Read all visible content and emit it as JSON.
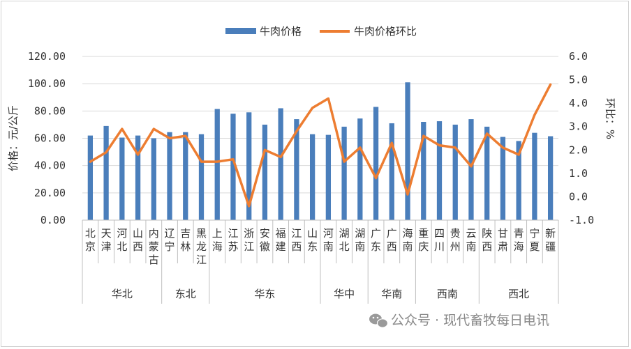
{
  "chart_data": {
    "type": "bar",
    "categories": [
      "北京",
      "天津",
      "河北",
      "山西",
      "内蒙古",
      "辽宁",
      "吉林",
      "黑龙江",
      "上海",
      "江苏",
      "浙江",
      "安徽",
      "福建",
      "江西",
      "山东",
      "河南",
      "湖北",
      "湖南",
      "广东",
      "广西",
      "海南",
      "重庆",
      "四川",
      "贵州",
      "云南",
      "陕西",
      "甘肃",
      "青海",
      "宁夏",
      "新疆"
    ],
    "regions": [
      {
        "name": "华北",
        "span": 5
      },
      {
        "name": "东北",
        "span": 3
      },
      {
        "name": "华东",
        "span": 7
      },
      {
        "name": "华中",
        "span": 3
      },
      {
        "name": "华南",
        "span": 3
      },
      {
        "name": "西南",
        "span": 4
      },
      {
        "name": "西北",
        "span": 5
      }
    ],
    "series": [
      {
        "name": "牛肉价格",
        "axis": "left",
        "kind": "bar",
        "color": "#4a7ebb",
        "values": [
          62.0,
          69.0,
          60.5,
          62.0,
          60.0,
          64.5,
          64.5,
          63.0,
          81.5,
          78.0,
          79.0,
          70.0,
          82.0,
          74.0,
          63.0,
          62.5,
          68.5,
          74.5,
          83.0,
          71.0,
          101.0,
          72.0,
          72.5,
          70.0,
          74.0,
          68.5,
          61.0,
          58.0,
          64.0,
          61.5
        ]
      },
      {
        "name": "牛肉价格环比",
        "axis": "right",
        "kind": "line",
        "color": "#ed7d31",
        "values": [
          1.5,
          1.9,
          2.9,
          1.8,
          2.9,
          2.5,
          2.6,
          1.5,
          1.5,
          1.6,
          -0.4,
          2.0,
          1.7,
          2.8,
          3.8,
          4.2,
          1.5,
          2.1,
          0.8,
          2.3,
          0.1,
          2.6,
          2.2,
          2.1,
          1.3,
          2.7,
          2.1,
          1.8,
          3.5,
          4.8
        ]
      }
    ],
    "ylabel": "价格：元/公斤",
    "y2label": "环比：%",
    "ylim": [
      0,
      120
    ],
    "y2lim": [
      -1,
      6
    ],
    "yticks": [
      "0.00",
      "20.00",
      "40.00",
      "60.00",
      "80.00",
      "100.00",
      "120.00"
    ],
    "y2ticks": [
      "-1.0",
      "0.0",
      "1.0",
      "2.0",
      "3.0",
      "4.0",
      "5.0",
      "6.0"
    ],
    "y2_negative_color": "#e0301e",
    "grid": true,
    "legend": "top"
  },
  "watermark": {
    "text": "公众号 · 现代畜牧每日电讯",
    "icon": "wechat-icon"
  }
}
